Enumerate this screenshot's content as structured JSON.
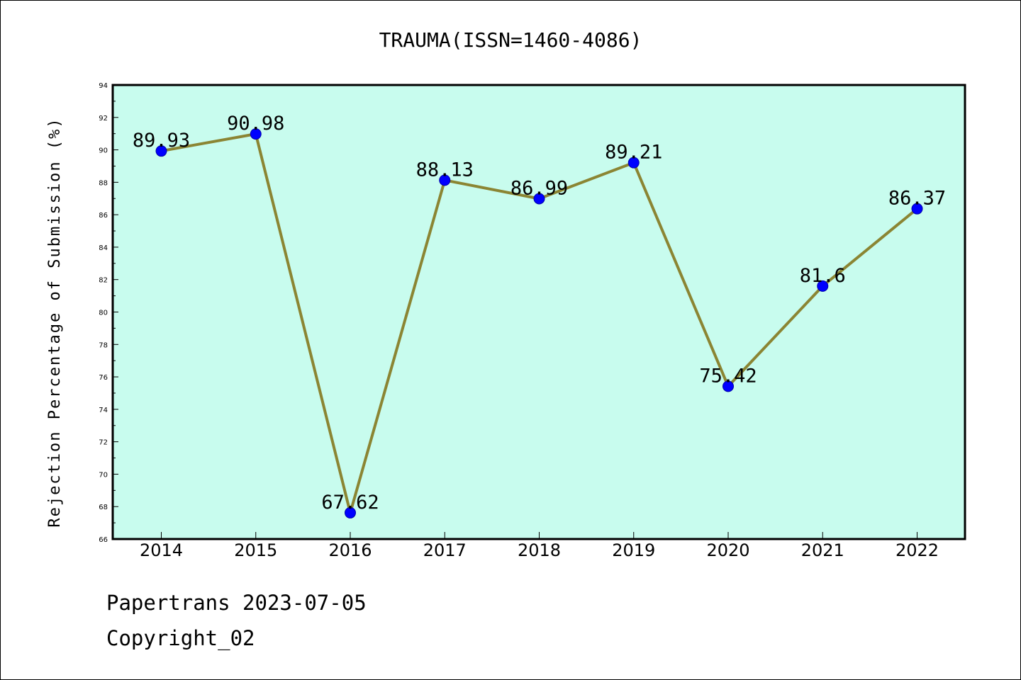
{
  "chart_data": {
    "type": "line",
    "title": "TRAUMA(ISSN=1460-4086)",
    "ylabel": "Rejection Percentage of Submission (%)",
    "xlabel": "",
    "categories": [
      "2014",
      "2015",
      "2016",
      "2017",
      "2018",
      "2019",
      "2020",
      "2021",
      "2022"
    ],
    "series": [
      {
        "values": [
          89.93,
          90.98,
          67.62,
          88.13,
          86.99,
          89.21,
          75.42,
          81.6,
          86.37
        ],
        "labels": [
          "89.93",
          "90.98",
          "67.62",
          "88.13",
          "86.99",
          "89.21",
          "75.42",
          "81.6",
          "86.37"
        ]
      }
    ],
    "ylim": [
      66,
      94
    ],
    "yticks": [
      "66",
      "68",
      "70",
      "72",
      "74",
      "76",
      "78",
      "80",
      "82",
      "84",
      "86",
      "88",
      "90",
      "92",
      "94"
    ],
    "grid": false,
    "legend": "none",
    "colors": {
      "plot_background": "#c8fcee",
      "line": "#8b8533",
      "marker": "#0000ff"
    }
  },
  "footer": {
    "line1": "Papertrans 2023-07-05",
    "line2": "Copyright_02"
  }
}
